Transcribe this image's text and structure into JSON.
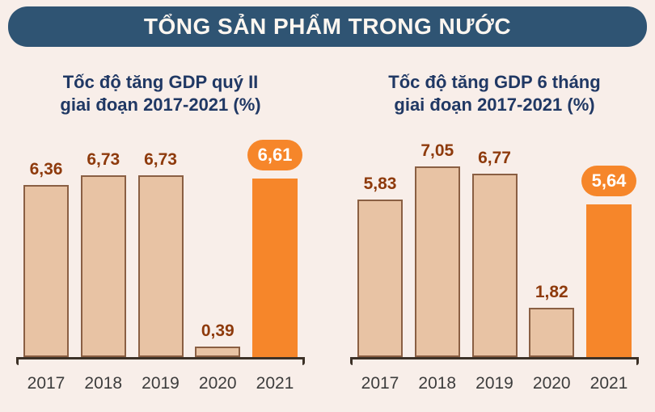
{
  "banner": {
    "title": "TỔNG SẢN PHẨM TRONG NƯỚC"
  },
  "colors": {
    "background": "#f8eee9",
    "banner_bg": "#2f5473",
    "title_text": "#203864",
    "bar_fill": "#e8c3a4",
    "bar_border": "#8a5f43",
    "highlight": "#f6862a",
    "value_label": "#8e3a0c",
    "year_label": "#3d3d3d",
    "axis": "#3c3127"
  },
  "chart_data": [
    {
      "type": "bar",
      "title": "Tốc độ tăng GDP quý II giai đoạn 2017-2021 (%)",
      "title_line1": "Tốc độ tăng GDP quý II",
      "title_line2": "giai đoạn 2017-2021 (%)",
      "categories": [
        "2017",
        "2018",
        "2019",
        "2020",
        "2021"
      ],
      "values": [
        6.36,
        6.73,
        6.73,
        0.39,
        6.61
      ],
      "value_labels": [
        "6,36",
        "6,73",
        "6,73",
        "0,39",
        "6,61"
      ],
      "highlight_index": 4,
      "xlabel": "",
      "ylabel": "",
      "ylim": [
        0,
        7.5
      ],
      "grid": false,
      "legend": "none"
    },
    {
      "type": "bar",
      "title": "Tốc độ tăng GDP 6 tháng giai đoạn 2017-2021 (%)",
      "title_line1": "Tốc độ tăng GDP 6 tháng",
      "title_line2": "giai đoạn 2017-2021 (%)",
      "categories": [
        "2017",
        "2018",
        "2019",
        "2020",
        "2021"
      ],
      "values": [
        5.83,
        7.05,
        6.77,
        1.82,
        5.64
      ],
      "value_labels": [
        "5,83",
        "7,05",
        "6,77",
        "1,82",
        "5,64"
      ],
      "highlight_index": 4,
      "xlabel": "",
      "ylabel": "",
      "ylim": [
        0,
        7.5
      ],
      "grid": false,
      "legend": "none"
    }
  ]
}
